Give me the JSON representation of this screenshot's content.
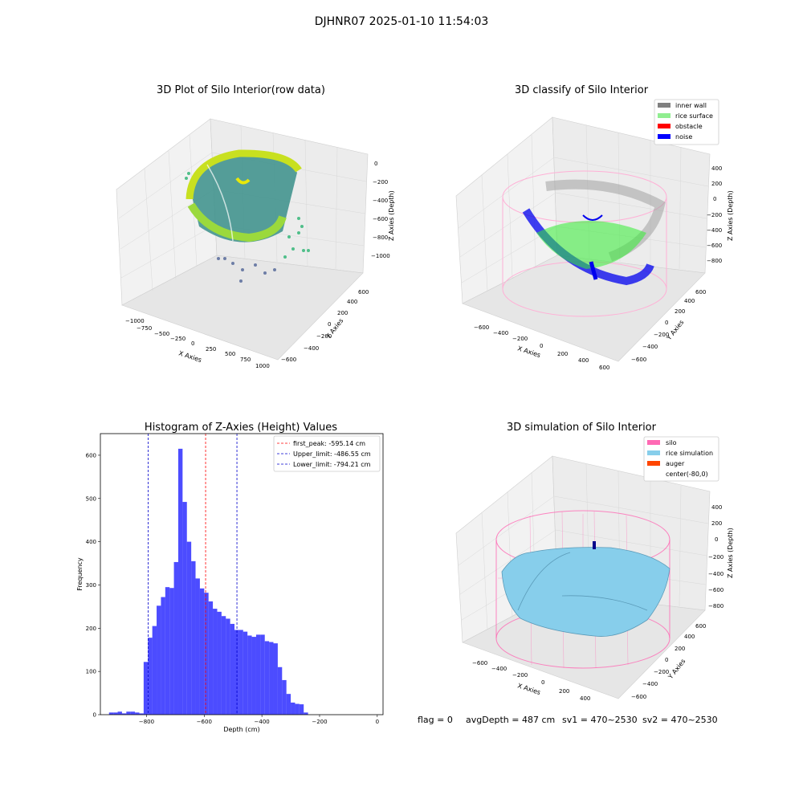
{
  "suptitle": "DJHNR07 2025-01-10 11:54:03",
  "status": {
    "flag": "flag = 0",
    "avg_depth": "avgDepth = 487 cm",
    "sv1": "sv1 = 470~2530",
    "sv2": "sv2 = 470~2530"
  },
  "panels": {
    "raw": {
      "title": "3D Plot of Silo Interior(row data)",
      "xlabel": "X Axies",
      "ylabel": "Y Axies",
      "zlabel": "Z Axies (Depth)",
      "xticks": [
        "−1000",
        "−750",
        "−500",
        "−250",
        "0",
        "250",
        "500",
        "750",
        "1000"
      ],
      "yticks": [
        "−600",
        "−400",
        "−200",
        "0",
        "200",
        "400",
        "600"
      ],
      "zticks": [
        "0",
        "−200",
        "−400",
        "−600",
        "−800",
        "−1000"
      ]
    },
    "classify": {
      "title": "3D classify of Silo Interior",
      "xlabel": "X Axies",
      "ylabel": "Y Axies",
      "zlabel": "Z Axies (Depth)",
      "xticks": [
        "−600",
        "−400",
        "−200",
        "0",
        "200",
        "400",
        "600"
      ],
      "yticks": [
        "−600",
        "−400",
        "−200",
        "0",
        "200",
        "400",
        "600"
      ],
      "zticks": [
        "400",
        "200",
        "0",
        "−200",
        "−400",
        "−600",
        "−800"
      ],
      "legend": [
        {
          "label": "inner wall",
          "color": "#808080"
        },
        {
          "label": "rice surface",
          "color": "#90ee90"
        },
        {
          "label": "obstacle",
          "color": "#ff0000"
        },
        {
          "label": "noise",
          "color": "#0000ff"
        }
      ]
    },
    "simulation": {
      "title": "3D simulation of Silo Interior",
      "xlabel": "X Axies",
      "ylabel": "Y Axies",
      "zlabel": "Z Axies (Depth)",
      "xticks": [
        "−600",
        "−400",
        "−200",
        "0",
        "200",
        "400"
      ],
      "yticks": [
        "−600",
        "−400",
        "−200",
        "0",
        "200",
        "400",
        "600"
      ],
      "zticks": [
        "400",
        "200",
        "0",
        "−200",
        "−400",
        "−600",
        "−800"
      ],
      "legend": [
        {
          "label": "silo",
          "color": "#ff69b4"
        },
        {
          "label": "rice simulation",
          "color": "#87ceeb"
        },
        {
          "label": "auger",
          "color": "#ff4500"
        },
        {
          "label": "center(-80,0)",
          "color": ""
        }
      ]
    }
  },
  "chart_data": {
    "type": "bar",
    "title": "Histogram of Z-Axies (Height) Values",
    "xlabel": "Depth (cm)",
    "ylabel": "Frequency",
    "xlim": [
      -960,
      20
    ],
    "ylim": [
      0,
      650
    ],
    "xticks": [
      -800,
      -600,
      -400,
      -200,
      0
    ],
    "yticks": [
      0,
      100,
      200,
      300,
      400,
      500,
      600
    ],
    "bin_start": -930,
    "bin_width": 15,
    "values": [
      5,
      5,
      7,
      3,
      7,
      7,
      5,
      3,
      122,
      178,
      205,
      252,
      272,
      295,
      293,
      353,
      615,
      492,
      400,
      355,
      315,
      292,
      282,
      262,
      245,
      238,
      228,
      222,
      210,
      196,
      196,
      192,
      183,
      180,
      185,
      185,
      170,
      168,
      165,
      110,
      80,
      48,
      28,
      25,
      24,
      5
    ],
    "bar_color": "#0000ff",
    "lines": [
      {
        "label": "first_peak: -595.14 cm",
        "x": -595.14,
        "color": "#ff0000"
      },
      {
        "label": "Upper_limit: -486.55 cm",
        "x": -486.55,
        "color": "#0000cc"
      },
      {
        "label": "Lower_limit: -794.21 cm",
        "x": -794.21,
        "color": "#0000cc"
      }
    ],
    "legend_position": "top-right",
    "grid": false
  }
}
